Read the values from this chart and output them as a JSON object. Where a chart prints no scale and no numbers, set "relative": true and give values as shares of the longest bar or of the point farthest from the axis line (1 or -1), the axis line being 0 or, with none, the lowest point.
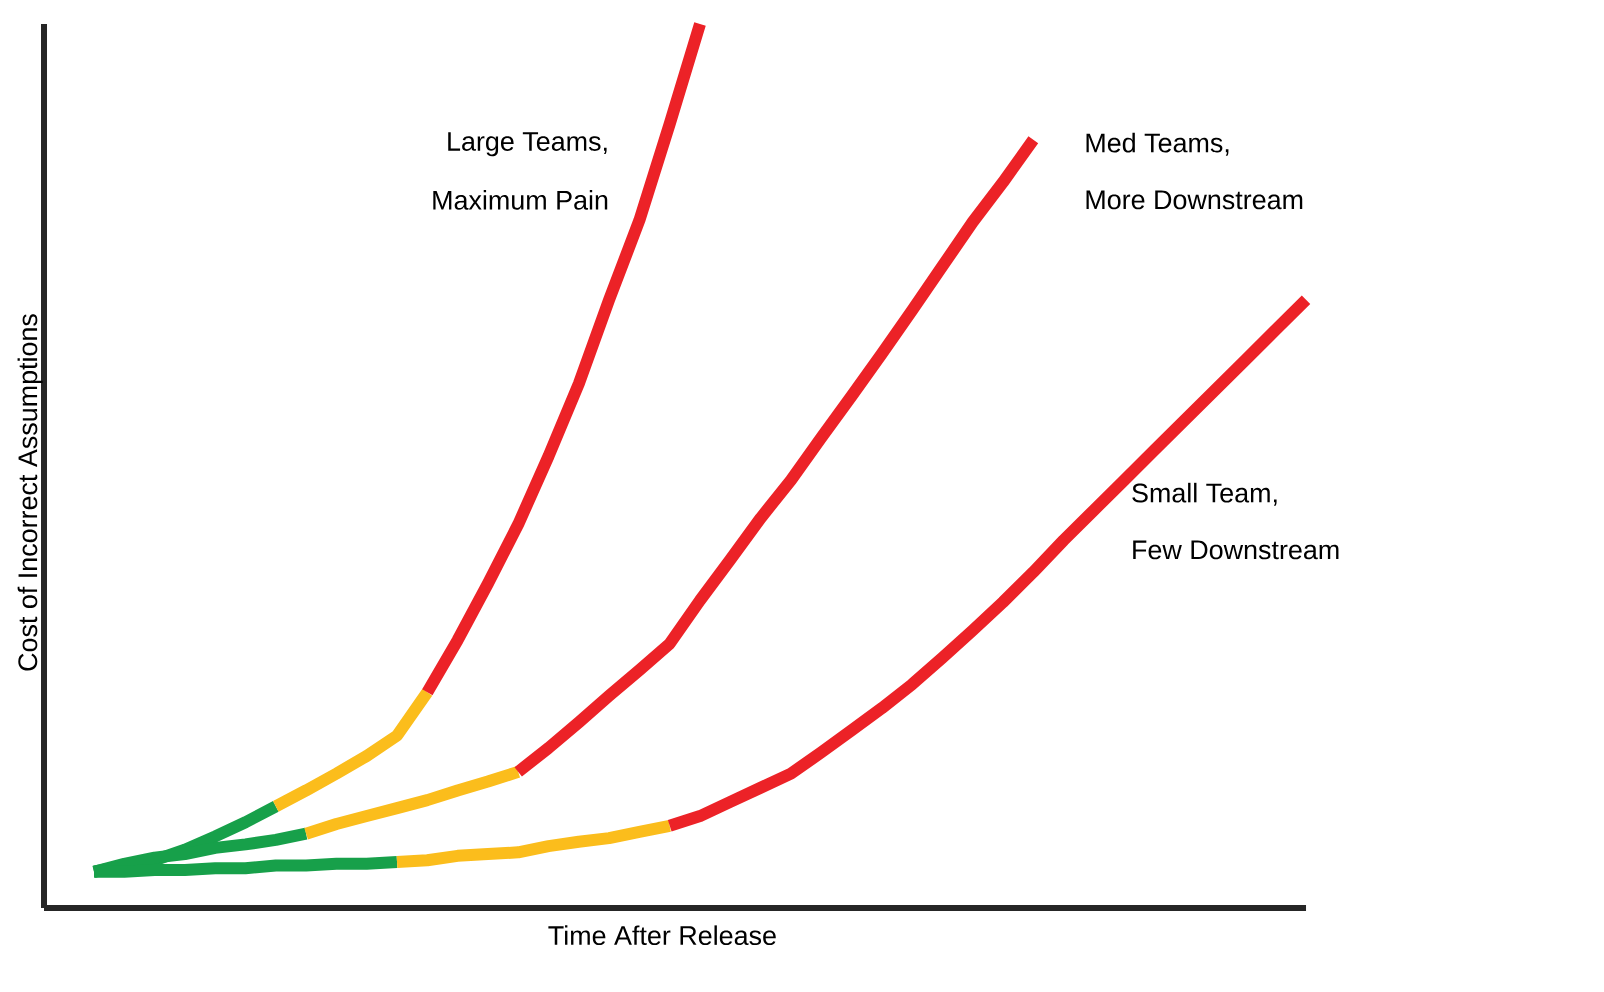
{
  "chart_data": {
    "type": "line",
    "relative": true,
    "xlabel": "Time After Release",
    "ylabel": "Cost of Incorrect Assumptions",
    "line_style": "solid",
    "marker": "none",
    "categories": [
      null,
      null,
      null,
      null,
      null,
      null,
      null,
      null,
      null,
      null,
      null,
      null,
      null,
      null,
      null,
      null,
      null,
      null,
      null,
      null,
      null,
      null,
      null,
      null,
      null,
      null,
      null,
      null,
      null,
      null,
      null,
      null,
      null,
      null,
      null,
      null,
      null,
      null,
      null,
      null,
      null
    ],
    "series": [
      {
        "color": "#17a04a",
        "values": [
          0.041,
          0.048,
          0.054,
          0.066,
          0.081,
          0.097,
          0.115,
          null,
          null,
          null,
          null,
          null,
          null,
          null,
          null,
          null,
          null,
          null,
          null,
          null,
          null,
          null,
          null,
          null,
          null,
          null,
          null,
          null,
          null,
          null,
          null,
          null,
          null,
          null,
          null,
          null,
          null,
          null,
          null,
          null,
          null
        ]
      },
      {
        "color": "#fbbd1c",
        "values": [
          null,
          null,
          null,
          null,
          null,
          null,
          0.115,
          0.133,
          0.152,
          0.172,
          0.195,
          0.244,
          null,
          null,
          null,
          null,
          null,
          null,
          null,
          null,
          null,
          null,
          null,
          null,
          null,
          null,
          null,
          null,
          null,
          null,
          null,
          null,
          null,
          null,
          null,
          null,
          null,
          null,
          null,
          null,
          null
        ]
      },
      {
        "color": "#ec2227",
        "values": [
          null,
          null,
          null,
          null,
          null,
          null,
          null,
          null,
          null,
          null,
          null,
          0.244,
          0.303,
          0.367,
          0.434,
          0.511,
          0.593,
          0.688,
          0.778,
          0.887,
          1.0,
          null,
          null,
          null,
          null,
          null,
          null,
          null,
          null,
          null,
          null,
          null,
          null,
          null,
          null,
          null,
          null,
          null,
          null,
          null,
          null
        ]
      },
      {
        "color": "#17a04a",
        "values": [
          0.041,
          0.05,
          0.057,
          0.061,
          0.068,
          0.072,
          0.077,
          0.084,
          null,
          null,
          null,
          null,
          null,
          null,
          null,
          null,
          null,
          null,
          null,
          null,
          null,
          null,
          null,
          null,
          null,
          null,
          null,
          null,
          null,
          null,
          null,
          null,
          null,
          null,
          null,
          null,
          null,
          null,
          null,
          null,
          null
        ]
      },
      {
        "color": "#fbbd1c",
        "values": [
          null,
          null,
          null,
          null,
          null,
          null,
          null,
          0.084,
          0.095,
          0.104,
          0.113,
          0.122,
          0.133,
          0.143,
          0.154,
          null,
          null,
          null,
          null,
          null,
          null,
          null,
          null,
          null,
          null,
          null,
          null,
          null,
          null,
          null,
          null,
          null,
          null,
          null,
          null,
          null,
          null,
          null,
          null,
          null,
          null
        ]
      },
      {
        "color": "#ec2227",
        "values": [
          null,
          null,
          null,
          null,
          null,
          null,
          null,
          null,
          null,
          null,
          null,
          null,
          null,
          null,
          0.154,
          0.181,
          0.21,
          0.24,
          0.269,
          0.299,
          0.348,
          0.394,
          0.441,
          0.484,
          0.532,
          0.579,
          0.627,
          0.676,
          0.726,
          0.776,
          0.821,
          0.869,
          null,
          null,
          null,
          null,
          null,
          null,
          null,
          null,
          null
        ]
      },
      {
        "color": "#17a04a",
        "values": [
          0.041,
          0.041,
          0.043,
          0.043,
          0.045,
          0.045,
          0.048,
          0.048,
          0.05,
          0.05,
          0.052,
          null,
          null,
          null,
          null,
          null,
          null,
          null,
          null,
          null,
          null,
          null,
          null,
          null,
          null,
          null,
          null,
          null,
          null,
          null,
          null,
          null,
          null,
          null,
          null,
          null,
          null,
          null,
          null,
          null,
          null
        ]
      },
      {
        "color": "#fbbd1c",
        "values": [
          null,
          null,
          null,
          null,
          null,
          null,
          null,
          null,
          null,
          null,
          0.052,
          0.054,
          0.059,
          0.061,
          0.063,
          0.07,
          0.075,
          0.079,
          0.086,
          0.093,
          null,
          null,
          null,
          null,
          null,
          null,
          null,
          null,
          null,
          null,
          null,
          null,
          null,
          null,
          null,
          null,
          null,
          null,
          null,
          null,
          null
        ]
      },
      {
        "color": "#ec2227",
        "values": [
          null,
          null,
          null,
          null,
          null,
          null,
          null,
          null,
          null,
          null,
          null,
          null,
          null,
          null,
          null,
          null,
          null,
          null,
          null,
          0.093,
          0.104,
          0.12,
          0.136,
          0.152,
          0.176,
          0.201,
          0.226,
          0.253,
          0.283,
          0.314,
          0.346,
          0.38,
          0.416,
          0.45,
          0.484,
          0.518,
          0.552,
          0.586,
          0.62,
          0.654,
          0.688
        ]
      }
    ],
    "annotations": [
      "Large Teams,",
      "Maximum Pain",
      "Med Teams,",
      "More Downstream",
      "Small Team,",
      "Few Downstream"
    ]
  }
}
